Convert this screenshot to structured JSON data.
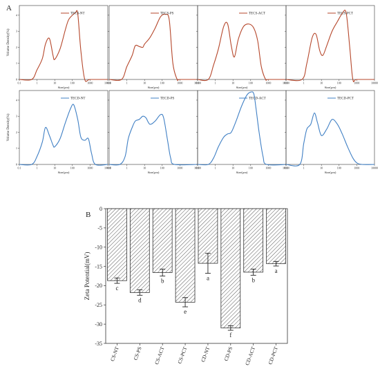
{
  "panel_labels": {
    "a": "A",
    "b": "B"
  },
  "chart_data": [
    {
      "type": "line",
      "panel": "A",
      "row": 0,
      "name": "TECS-NT",
      "x": [
        0.1,
        0.5,
        1,
        2,
        3,
        5,
        8,
        10,
        20,
        40,
        60,
        100,
        150,
        200,
        300,
        500,
        1000,
        10000
      ],
      "y": [
        0,
        0,
        0.6,
        1.3,
        2.2,
        2.55,
        1.5,
        1.25,
        1.9,
        3.1,
        3.7,
        4.0,
        4.15,
        4.1,
        1.8,
        0,
        0,
        0
      ],
      "xticks": [
        "0.1",
        "1",
        "10",
        "100",
        "1000",
        "10000"
      ],
      "yticks": [
        "0",
        "1",
        "2",
        "3",
        "4"
      ],
      "xlabel": "Size(μm)",
      "ylabel": "Volume Density(%)",
      "ylim": [
        0,
        4.6
      ],
      "color": "#b5462a"
    },
    {
      "type": "line",
      "panel": "A",
      "row": 0,
      "name": "TECS-PS",
      "x": [
        0.1,
        0.5,
        1,
        2,
        3,
        5,
        8,
        10,
        20,
        40,
        80,
        150,
        250,
        400,
        700,
        1000,
        10000
      ],
      "y": [
        0,
        0,
        0.8,
        1.5,
        2.1,
        2.05,
        2.0,
        2.2,
        2.6,
        3.2,
        3.9,
        4.05,
        3.7,
        1.0,
        0,
        0,
        0
      ],
      "xticks": [
        "0.1",
        "1",
        "10",
        "100",
        "1000",
        "10000"
      ],
      "yticks": [
        "0",
        "1",
        "2",
        "3",
        "4"
      ],
      "xlabel": "Size(μm)",
      "ylabel": "",
      "ylim": [
        0,
        4.6
      ],
      "color": "#b5462a"
    },
    {
      "type": "line",
      "panel": "A",
      "row": 0,
      "name": "TECS-ACT",
      "x": [
        0.1,
        0.4,
        0.8,
        1.5,
        3,
        5,
        8,
        12,
        20,
        40,
        80,
        150,
        250,
        400,
        700,
        1000,
        10000
      ],
      "y": [
        0,
        0,
        0.9,
        1.9,
        3.3,
        3.45,
        2.1,
        1.4,
        2.5,
        3.3,
        3.45,
        3.2,
        2.4,
        0.8,
        0,
        0,
        0
      ],
      "xticks": [
        "0.1",
        "1",
        "10",
        "100",
        "1000",
        "10000"
      ],
      "yticks": [
        "0",
        "1",
        "2",
        "3",
        "4"
      ],
      "xlabel": "Size(μm)",
      "ylabel": "",
      "ylim": [
        0,
        4.6
      ],
      "color": "#b5462a"
    },
    {
      "type": "line",
      "panel": "A",
      "row": 0,
      "name": "TECS-PCT",
      "x": [
        0.1,
        0.8,
        1.5,
        3,
        5,
        8,
        12,
        20,
        40,
        80,
        150,
        250,
        400,
        600,
        1000,
        10000
      ],
      "y": [
        0,
        0,
        1.0,
        2.6,
        2.8,
        1.8,
        1.5,
        2.1,
        3.0,
        3.6,
        4.1,
        4.15,
        2.0,
        0,
        0,
        0
      ],
      "xticks": [
        "0.1",
        "1",
        "10",
        "100",
        "1000",
        "10000"
      ],
      "yticks": [
        "0",
        "1",
        "2",
        "3",
        "4"
      ],
      "xlabel": "Size(μm)",
      "ylabel": "",
      "ylim": [
        0,
        4.6
      ],
      "color": "#b5462a"
    },
    {
      "type": "line",
      "panel": "A",
      "row": 1,
      "name": "TECD-NT",
      "x": [
        0.1,
        0.5,
        1,
        2,
        3,
        5,
        8,
        10,
        20,
        40,
        80,
        120,
        200,
        300,
        500,
        800,
        1200,
        2000,
        10000
      ],
      "y": [
        0,
        0,
        0.5,
        1.4,
        2.3,
        1.8,
        1.2,
        1.1,
        1.6,
        2.6,
        3.5,
        3.7,
        2.8,
        1.7,
        1.5,
        1.6,
        0.7,
        0,
        0
      ],
      "xticks": [
        "0.1",
        "1",
        "10",
        "100",
        "1000",
        "10000"
      ],
      "yticks": [
        "0",
        "1",
        "2",
        "3",
        "4"
      ],
      "xlabel": "Size(μm)",
      "ylabel": "Volume Density(%)",
      "ylim": [
        0,
        4.6
      ],
      "color": "#3f7fc4"
    },
    {
      "type": "line",
      "panel": "A",
      "row": 1,
      "name": "TECD-PS",
      "x": [
        0.1,
        0.4,
        0.8,
        1.2,
        2,
        3,
        5,
        8,
        12,
        20,
        40,
        80,
        120,
        200,
        300,
        500,
        10000
      ],
      "y": [
        0,
        0,
        0.5,
        1.6,
        2.3,
        2.7,
        2.8,
        3.0,
        2.9,
        2.5,
        2.7,
        3.1,
        2.9,
        1.5,
        0.4,
        0,
        0
      ],
      "xticks": [
        "0.1",
        "1",
        "10",
        "100",
        "1000",
        "10000"
      ],
      "yticks": [
        "0",
        "1",
        "2",
        "3",
        "4"
      ],
      "xlabel": "Size(μm)",
      "ylabel": "",
      "ylim": [
        0,
        4.6
      ],
      "color": "#3f7fc4"
    },
    {
      "type": "line",
      "panel": "A",
      "row": 1,
      "name": "TECD-ACT",
      "x": [
        0.1,
        0.4,
        0.8,
        1.5,
        3,
        5,
        8,
        15,
        30,
        60,
        100,
        150,
        200,
        300,
        500,
        800,
        10000
      ],
      "y": [
        0,
        0,
        0.4,
        1.1,
        1.7,
        1.9,
        2.0,
        2.7,
        3.6,
        4.3,
        4.5,
        4.4,
        3.5,
        2.0,
        0.5,
        0,
        0
      ],
      "xticks": [
        "0.1",
        "1",
        "10",
        "100",
        "1000",
        "10000"
      ],
      "yticks": [
        "0",
        "1",
        "2",
        "3",
        "4"
      ],
      "xlabel": "Size(μm)",
      "ylabel": "",
      "ylim": [
        0,
        4.6
      ],
      "color": "#3f7fc4"
    },
    {
      "type": "line",
      "panel": "A",
      "row": 1,
      "name": "TECD-PCT",
      "x": [
        0.1,
        0.6,
        1,
        1.5,
        2.5,
        4,
        6,
        10,
        20,
        40,
        80,
        150,
        300,
        600,
        1000,
        2000,
        10000
      ],
      "y": [
        0,
        0,
        1.3,
        2.2,
        2.5,
        3.2,
        2.6,
        1.8,
        2.2,
        2.8,
        2.5,
        1.9,
        1.1,
        0.4,
        0.1,
        0,
        0
      ],
      "xticks": [
        "0.1",
        "1",
        "10",
        "100",
        "1000",
        "10000"
      ],
      "yticks": [
        "0",
        "1",
        "2",
        "3",
        "4"
      ],
      "xlabel": "Size(μm)",
      "ylabel": "",
      "ylim": [
        0,
        4.6
      ],
      "color": "#3f7fc4"
    },
    {
      "type": "bar",
      "panel": "B",
      "categories": [
        "CS-NT",
        "CS-PS",
        "CS-ACT",
        "CS-PCT",
        "CD-NT",
        "CD-PS",
        "CD-ACT",
        "CD-PCT"
      ],
      "values": [
        -18.7,
        -21.8,
        -16.6,
        -24.3,
        -14.2,
        -31.0,
        -16.5,
        -14.3
      ],
      "errors": [
        0.7,
        0.7,
        0.9,
        1.2,
        2.6,
        0.6,
        0.8,
        0.6
      ],
      "significance": [
        "c",
        "d",
        "b",
        "e",
        "a",
        "f",
        "b",
        "a"
      ],
      "ylabel": "Zeta Potential(mV)",
      "yticks": [
        "0",
        "-5",
        "-10",
        "-15",
        "-20",
        "-25",
        "-30",
        "-35"
      ],
      "ylim": [
        -35,
        0
      ]
    }
  ]
}
